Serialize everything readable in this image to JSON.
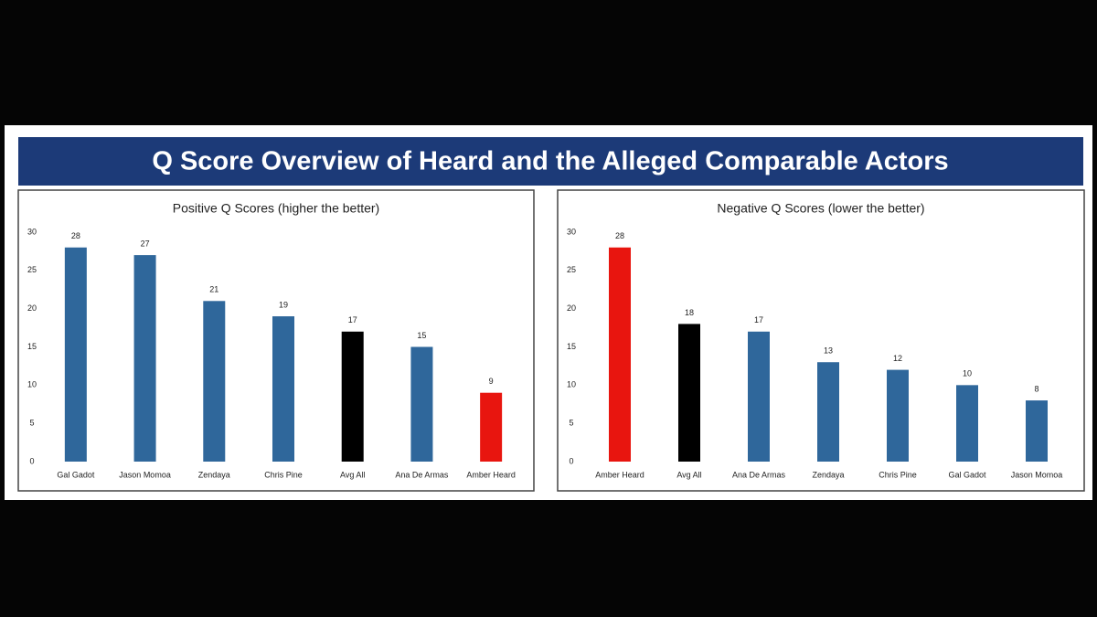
{
  "header": {
    "title": "Q Score Overview of Heard and the Alleged Comparable Actors"
  },
  "chart_data": [
    {
      "type": "bar",
      "title": "Positive Q Scores (higher the better)",
      "categories": [
        "Gal Gadot",
        "Jason Momoa",
        "Zendaya",
        "Chris Pine",
        "Avg All",
        "Ana De Armas",
        "Amber Heard"
      ],
      "values": [
        28,
        27,
        21,
        19,
        17,
        15,
        9
      ],
      "colors": [
        "#2f679b",
        "#2f679b",
        "#2f679b",
        "#2f679b",
        "#000000",
        "#2f679b",
        "#e8150f"
      ],
      "ylim": [
        0,
        30
      ],
      "yticks": [
        0,
        5,
        10,
        15,
        20,
        25,
        30
      ],
      "grid": false
    },
    {
      "type": "bar",
      "title": "Negative Q Scores (lower the better)",
      "categories": [
        "Amber Heard",
        "Avg All",
        "Ana De Armas",
        "Zendaya",
        "Chris Pine",
        "Gal Gadot",
        "Jason Momoa"
      ],
      "values": [
        28,
        18,
        17,
        13,
        12,
        10,
        8
      ],
      "colors": [
        "#e8150f",
        "#000000",
        "#2f679b",
        "#2f679b",
        "#2f679b",
        "#2f679b",
        "#2f679b"
      ],
      "ylim": [
        0,
        30
      ],
      "yticks": [
        0,
        5,
        10,
        15,
        20,
        25,
        30
      ],
      "grid": false
    }
  ]
}
